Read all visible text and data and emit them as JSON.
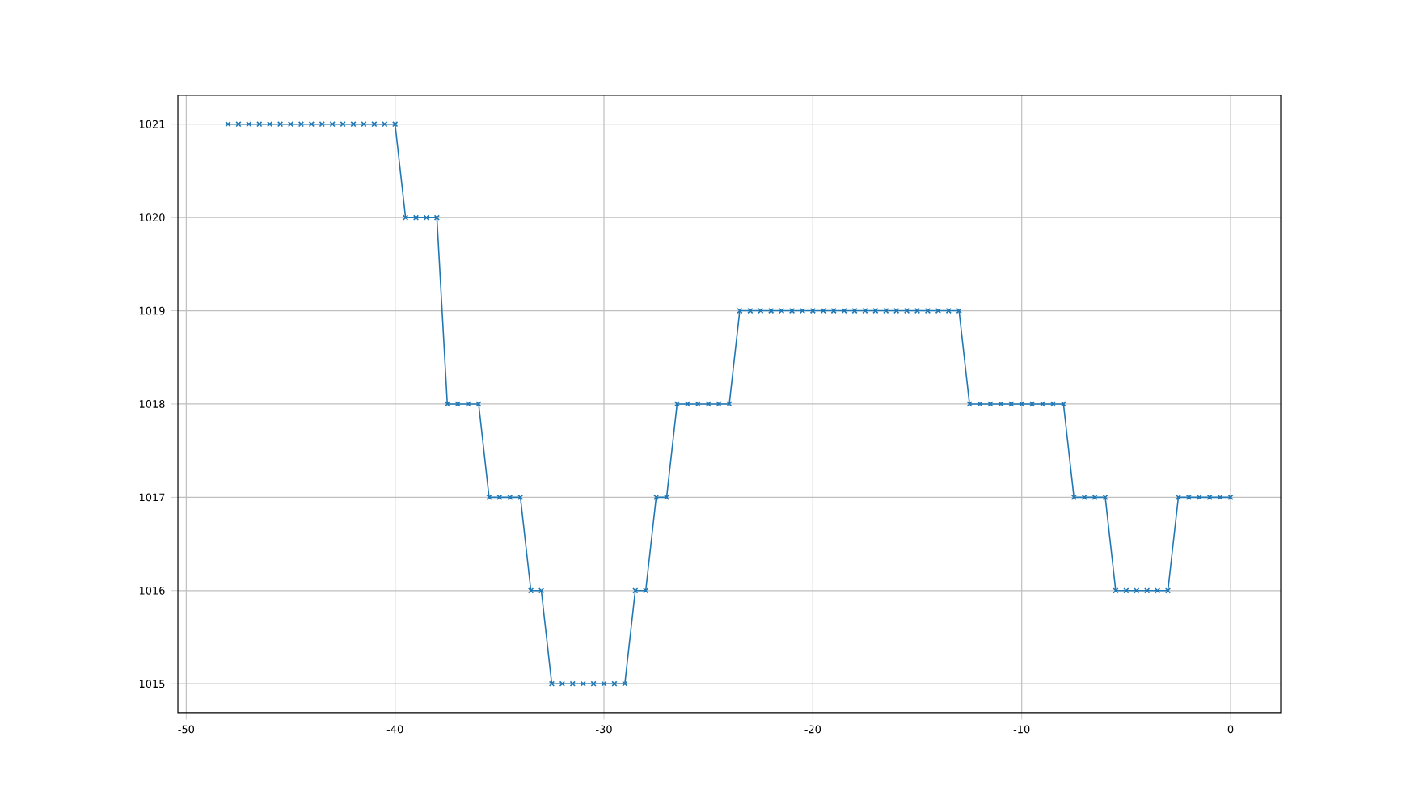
{
  "chart_data": {
    "type": "line",
    "x": [
      -48,
      -47.5,
      -47,
      -46.5,
      -46,
      -45.5,
      -45,
      -44.5,
      -44,
      -43.5,
      -43,
      -42.5,
      -42,
      -41.5,
      -41,
      -40.5,
      -40,
      -39.5,
      -39,
      -38.5,
      -38,
      -37.5,
      -37,
      -36.5,
      -36,
      -35.5,
      -35,
      -34.5,
      -34,
      -33.5,
      -33,
      -32.5,
      -32,
      -31.5,
      -31,
      -30.5,
      -30,
      -29.5,
      -29,
      -28.5,
      -28,
      -27.5,
      -27,
      -26.5,
      -26,
      -25.5,
      -25,
      -24.5,
      -24,
      -23.5,
      -23,
      -22.5,
      -22,
      -21.5,
      -21,
      -20.5,
      -20,
      -19.5,
      -19,
      -18.5,
      -18,
      -17.5,
      -17,
      -16.5,
      -16,
      -15.5,
      -15,
      -14.5,
      -14,
      -13.5,
      -13,
      -12.5,
      -12,
      -11.5,
      -11,
      -10.5,
      -10,
      -9.5,
      -9,
      -8.5,
      -8,
      -7.5,
      -7,
      -6.5,
      -6,
      -5.5,
      -5,
      -4.5,
      -4,
      -3.5,
      -3,
      -2.5,
      -2,
      -1.5,
      -1,
      -0.5,
      0
    ],
    "series": [
      {
        "color": "#1f77b4",
        "values": [
          1021,
          1021,
          1021,
          1021,
          1021,
          1021,
          1021,
          1021,
          1021,
          1021,
          1021,
          1021,
          1021,
          1021,
          1021,
          1021,
          1021,
          1020,
          1020,
          1020,
          1020,
          1018,
          1018,
          1018,
          1018,
          1017,
          1017,
          1017,
          1017,
          1016,
          1016,
          1015,
          1015,
          1015,
          1015,
          1015,
          1015,
          1015,
          1015,
          1016,
          1016,
          1017,
          1017,
          1018,
          1018,
          1018,
          1018,
          1018,
          1018,
          1019,
          1019,
          1019,
          1019,
          1019,
          1019,
          1019,
          1019,
          1019,
          1019,
          1019,
          1019,
          1019,
          1019,
          1019,
          1019,
          1019,
          1019,
          1019,
          1019,
          1019,
          1019,
          1018,
          1018,
          1018,
          1018,
          1018,
          1018,
          1018,
          1018,
          1018,
          1018,
          1017,
          1017,
          1017,
          1017,
          1016,
          1016,
          1016,
          1016,
          1016,
          1016,
          1017,
          1017,
          1017,
          1017,
          1017,
          1017
        ]
      }
    ],
    "xlim": [
      -50.4,
      2.4
    ],
    "ylim": [
      1014.69,
      1021.31
    ],
    "xticks": [
      -50,
      -40,
      -30,
      -20,
      -10,
      0
    ],
    "yticks": [
      1015,
      1016,
      1017,
      1018,
      1019,
      1020,
      1021
    ],
    "grid": true,
    "marker": "cross",
    "line_style": "solid"
  }
}
